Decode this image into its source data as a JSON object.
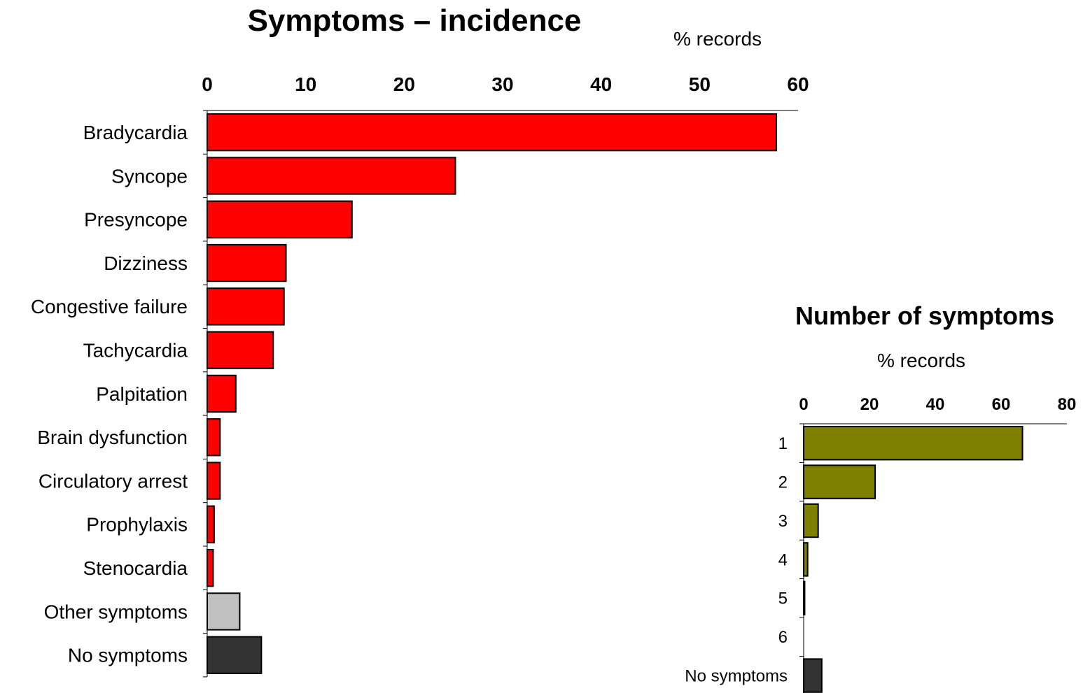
{
  "chart_data": [
    {
      "type": "bar",
      "orientation": "horizontal",
      "title": "Symptoms – incidence",
      "xlabel": "% records",
      "ylabel": "",
      "xlim": [
        0,
        60
      ],
      "ticks": [
        "0",
        "10",
        "20",
        "30",
        "40",
        "50",
        "60"
      ],
      "categories": [
        "Bradycardia",
        "Syncope",
        "Presyncope",
        "Dizziness",
        "Congestive failure",
        "Tachycardia",
        "Palpitation",
        "Brain dysfunction",
        "Circulatory arrest",
        "Prophylaxis",
        "Stenocardia",
        "Other symptoms",
        "No symptoms"
      ],
      "values": [
        57.8,
        25.2,
        14.7,
        8.0,
        7.8,
        6.7,
        2.9,
        1.3,
        1.3,
        0.7,
        0.6,
        3.3,
        5.5
      ],
      "colors": [
        "#ff0000",
        "#ff0000",
        "#ff0000",
        "#ff0000",
        "#ff0000",
        "#ff0000",
        "#ff0000",
        "#ff0000",
        "#ff0000",
        "#ff0000",
        "#ff0000",
        "#c0c0c0",
        "#333333"
      ],
      "grid": false,
      "axis_position": "top"
    },
    {
      "type": "bar",
      "orientation": "horizontal",
      "title": "Number of symptoms",
      "xlabel": "% records",
      "ylabel": "",
      "xlim": [
        0,
        80
      ],
      "ticks": [
        "0",
        "20",
        "40",
        "60",
        "80"
      ],
      "categories": [
        "1",
        "2",
        "3",
        "4",
        "5",
        "6",
        "No symptoms"
      ],
      "values": [
        66.5,
        21.7,
        4.4,
        1.2,
        0.3,
        0.0,
        5.5
      ],
      "colors": [
        "#808000",
        "#808000",
        "#808000",
        "#808000",
        "#808000",
        "#808000",
        "#333333"
      ],
      "grid": false,
      "axis_position": "top"
    }
  ]
}
